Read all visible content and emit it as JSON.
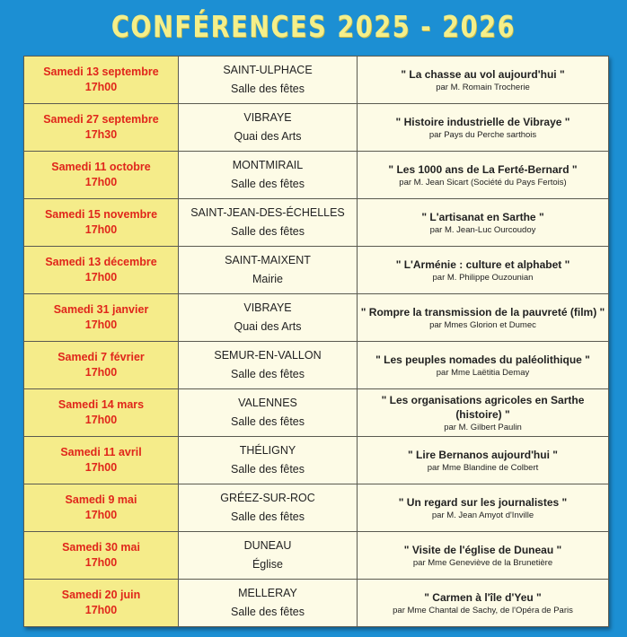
{
  "title": "CONFÉRENCES 2025 - 2026",
  "colors": {
    "background": "#1c8fd3",
    "title": "#f4ef8a",
    "date_column": "#f5ec8a",
    "date_text": "#e0261b",
    "cell": "#fdfbe6"
  },
  "rows": [
    {
      "date": "Samedi 13 septembre",
      "time": "17h00",
      "town": "SAINT-ULPHACE",
      "venue": "Salle des fêtes",
      "talk": "\" La chasse au vol aujourd'hui \"",
      "speaker": "par M. Romain Trocherie"
    },
    {
      "date": "Samedi 27 septembre",
      "time": "17h30",
      "town": "VIBRAYE",
      "venue": "Quai des Arts",
      "talk": "\" Histoire industrielle de Vibraye \"",
      "speaker": "par Pays du Perche sarthois"
    },
    {
      "date": "Samedi 11 octobre",
      "time": "17h00",
      "town": "MONTMIRAIL",
      "venue": "Salle des fêtes",
      "talk": "\" Les 1000 ans de La Ferté-Bernard \"",
      "speaker": "par M. Jean Sicart (Société du Pays Fertois)"
    },
    {
      "date": "Samedi 15 novembre",
      "time": "17h00",
      "town": "SAINT-JEAN-DES-ÉCHELLES",
      "venue": "Salle des fêtes",
      "talk": "\" L'artisanat en Sarthe \"",
      "speaker": "par M. Jean-Luc Ourcoudoy"
    },
    {
      "date": "Samedi 13 décembre",
      "time": "17h00",
      "town": "SAINT-MAIXENT",
      "venue": "Mairie",
      "talk": "\" L'Arménie : culture et alphabet \"",
      "speaker": "par M. Philippe Ouzounian"
    },
    {
      "date": "Samedi 31 janvier",
      "time": "17h00",
      "town": "VIBRAYE",
      "venue": "Quai des Arts",
      "talk": "\" Rompre la transmission de la pauvreté (film) \"",
      "speaker": "par Mmes Glorion et Dumec"
    },
    {
      "date": "Samedi 7 février",
      "time": "17h00",
      "town": "SEMUR-EN-VALLON",
      "venue": "Salle des fêtes",
      "talk": "\" Les peuples nomades du paléolithique \"",
      "speaker": "par Mme  Laëtitia Demay"
    },
    {
      "date": "Samedi 14 mars",
      "time": "17h00",
      "town": "VALENNES",
      "venue": "Salle des fêtes",
      "talk": "\" Les organisations agricoles en Sarthe (histoire) \"",
      "speaker": "par M. Gilbert Paulin"
    },
    {
      "date": "Samedi 11 avril",
      "time": "17h00",
      "town": "THÉLIGNY",
      "venue": "Salle des fêtes",
      "talk": "\" Lire Bernanos aujourd'hui \"",
      "speaker": "par Mme Blandine de Colbert"
    },
    {
      "date": "Samedi 9 mai",
      "time": "17h00",
      "town": "GRÉEZ-SUR-ROC",
      "venue": "Salle des fêtes",
      "talk": "\" Un regard sur les journalistes \"",
      "speaker": "par M. Jean Amyot d'Inville"
    },
    {
      "date": "Samedi 30 mai",
      "time": "17h00",
      "town": "DUNEAU",
      "venue": "Église",
      "talk": "\" Visite de l'église de Duneau \"",
      "speaker": "par Mme Geneviève de la Brunetière"
    },
    {
      "date": "Samedi 20 juin",
      "time": "17h00",
      "town": "MELLERAY",
      "venue": "Salle des fêtes",
      "talk": "\" Carmen à l'île d'Yeu \"",
      "speaker": "par  Mme Chantal de Sachy, de l'Opéra de Paris"
    }
  ]
}
